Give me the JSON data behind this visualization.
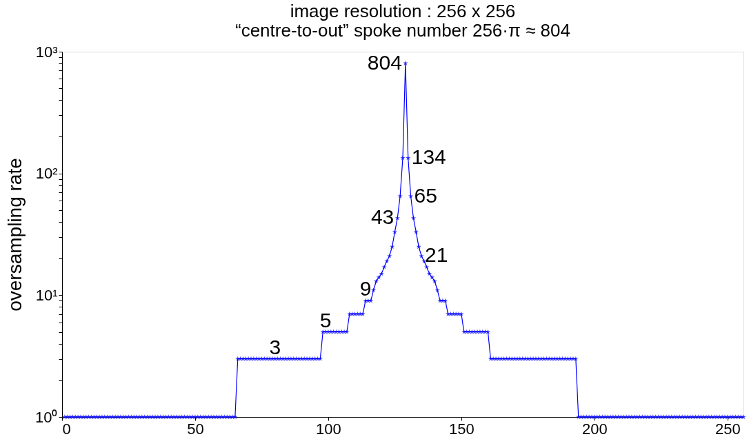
{
  "chart_data": {
    "type": "line",
    "title": "image resolution : 256 x 256",
    "subtitle": "“centre-to-out” spoke number 256·π ≈ 804",
    "ylabel": "oversampling rate",
    "x": [
      1,
      2,
      3,
      4,
      5,
      6,
      7,
      8,
      9,
      10,
      11,
      12,
      13,
      14,
      15,
      16,
      17,
      18,
      19,
      20,
      21,
      22,
      23,
      24,
      25,
      26,
      27,
      28,
      29,
      30,
      31,
      32,
      33,
      34,
      35,
      36,
      37,
      38,
      39,
      40,
      41,
      42,
      43,
      44,
      45,
      46,
      47,
      48,
      49,
      50,
      51,
      52,
      53,
      54,
      55,
      56,
      57,
      58,
      59,
      60,
      61,
      62,
      63,
      64,
      65,
      66,
      67,
      68,
      69,
      70,
      71,
      72,
      73,
      74,
      75,
      76,
      77,
      78,
      79,
      80,
      81,
      82,
      83,
      84,
      85,
      86,
      87,
      88,
      89,
      90,
      91,
      92,
      93,
      94,
      95,
      96,
      97,
      98,
      99,
      100,
      101,
      102,
      103,
      104,
      105,
      106,
      107,
      108,
      109,
      110,
      111,
      112,
      113,
      114,
      115,
      116,
      117,
      118,
      119,
      120,
      121,
      122,
      123,
      124,
      125,
      126,
      127,
      128,
      129,
      130,
      131,
      132,
      133,
      134,
      135,
      136,
      137,
      138,
      139,
      140,
      141,
      142,
      143,
      144,
      145,
      146,
      147,
      148,
      149,
      150,
      151,
      152,
      153,
      154,
      155,
      156,
      157,
      158,
      159,
      160,
      161,
      162,
      163,
      164,
      165,
      166,
      167,
      168,
      169,
      170,
      171,
      172,
      173,
      174,
      175,
      176,
      177,
      178,
      179,
      180,
      181,
      182,
      183,
      184,
      185,
      186,
      187,
      188,
      189,
      190,
      191,
      192,
      193,
      194,
      195,
      196,
      197,
      198,
      199,
      200,
      201,
      202,
      203,
      204,
      205,
      206,
      207,
      208,
      209,
      210,
      211,
      212,
      213,
      214,
      215,
      216,
      217,
      218,
      219,
      220,
      221,
      222,
      223,
      224,
      225,
      226,
      227,
      228,
      229,
      230,
      231,
      232,
      233,
      234,
      235,
      236,
      237,
      238,
      239,
      240,
      241,
      242,
      243,
      244,
      245,
      246,
      247,
      248,
      249,
      250,
      251,
      252,
      253,
      254,
      255,
      256
    ],
    "series": [
      {
        "color": "#0000ff",
        "values": [
          1,
          1,
          1,
          1,
          1,
          1,
          1,
          1,
          1,
          1,
          1,
          1,
          1,
          1,
          1,
          1,
          1,
          1,
          1,
          1,
          1,
          1,
          1,
          1,
          1,
          1,
          1,
          1,
          1,
          1,
          1,
          1,
          1,
          1,
          1,
          1,
          1,
          1,
          1,
          1,
          1,
          1,
          1,
          1,
          1,
          1,
          1,
          1,
          1,
          1,
          1,
          1,
          1,
          1,
          1,
          1,
          1,
          1,
          1,
          1,
          1,
          1,
          1,
          1,
          1,
          3,
          3,
          3,
          3,
          3,
          3,
          3,
          3,
          3,
          3,
          3,
          3,
          3,
          3,
          3,
          3,
          3,
          3,
          3,
          3,
          3,
          3,
          3,
          3,
          3,
          3,
          3,
          3,
          3,
          3,
          3,
          3,
          5,
          5,
          5,
          5,
          5,
          5,
          5,
          5,
          5,
          5,
          7,
          7,
          7,
          7,
          7,
          7,
          9,
          9,
          9,
          11,
          13,
          14,
          15,
          17,
          19,
          21,
          25,
          33,
          43,
          65,
          134,
          804,
          134,
          65,
          43,
          33,
          25,
          21,
          19,
          17,
          15,
          14,
          13,
          11,
          9,
          9,
          9,
          7,
          7,
          7,
          7,
          7,
          7,
          5,
          5,
          5,
          5,
          5,
          5,
          5,
          5,
          5,
          5,
          3,
          3,
          3,
          3,
          3,
          3,
          3,
          3,
          3,
          3,
          3,
          3,
          3,
          3,
          3,
          3,
          3,
          3,
          3,
          3,
          3,
          3,
          3,
          3,
          3,
          3,
          3,
          3,
          3,
          3,
          3,
          3,
          3,
          1,
          1,
          1,
          1,
          1,
          1,
          1,
          1,
          1,
          1,
          1,
          1,
          1,
          1,
          1,
          1,
          1,
          1,
          1,
          1,
          1,
          1,
          1,
          1,
          1,
          1,
          1,
          1,
          1,
          1,
          1,
          1,
          1,
          1,
          1,
          1,
          1,
          1,
          1,
          1,
          1,
          1,
          1,
          1,
          1,
          1,
          1,
          1,
          1,
          1,
          1,
          1,
          1,
          1,
          1,
          1,
          1,
          1,
          1,
          1,
          1,
          1,
          1
        ]
      }
    ],
    "annotations": [
      {
        "text": "804",
        "x": 129,
        "y": 804
      },
      {
        "text": "134",
        "x": 130,
        "y": 134
      },
      {
        "text": "65",
        "x": 131,
        "y": 65
      },
      {
        "text": "43",
        "x": 126,
        "y": 43
      },
      {
        "text": "21",
        "x": 135,
        "y": 21
      },
      {
        "text": "9",
        "x": 114,
        "y": 9
      },
      {
        "text": "5",
        "x": 99,
        "y": 5
      },
      {
        "text": "3",
        "x": 80,
        "y": 3
      }
    ],
    "xlim": [
      0,
      256
    ],
    "xticks": [
      0,
      50,
      100,
      150,
      200,
      250
    ],
    "ylim": [
      1,
      1000
    ],
    "yticks": [
      {
        "value": 1,
        "label": "10⁰"
      },
      {
        "value": 2,
        "label": null
      },
      {
        "value": 3,
        "label": null
      },
      {
        "value": 4,
        "label": null
      },
      {
        "value": 5,
        "label": null
      },
      {
        "value": 6,
        "label": null
      },
      {
        "value": 7,
        "label": null
      },
      {
        "value": 8,
        "label": null
      },
      {
        "value": 9,
        "label": null
      },
      {
        "value": 10,
        "label": "10¹"
      },
      {
        "value": 20,
        "label": null
      },
      {
        "value": 30,
        "label": null
      },
      {
        "value": 40,
        "label": null
      },
      {
        "value": 50,
        "label": null
      },
      {
        "value": 60,
        "label": null
      },
      {
        "value": 70,
        "label": null
      },
      {
        "value": 80,
        "label": null
      },
      {
        "value": 90,
        "label": null
      },
      {
        "value": 100,
        "label": "10²"
      },
      {
        "value": 200,
        "label": null
      },
      {
        "value": 300,
        "label": null
      },
      {
        "value": 400,
        "label": null
      },
      {
        "value": 500,
        "label": null
      },
      {
        "value": 600,
        "label": null
      },
      {
        "value": 700,
        "label": null
      },
      {
        "value": 800,
        "label": null
      },
      {
        "value": 900,
        "label": null
      },
      {
        "value": 1000,
        "label": "10³"
      }
    ],
    "log": true,
    "grid": false,
    "marker": "star",
    "line_style": "solid"
  }
}
